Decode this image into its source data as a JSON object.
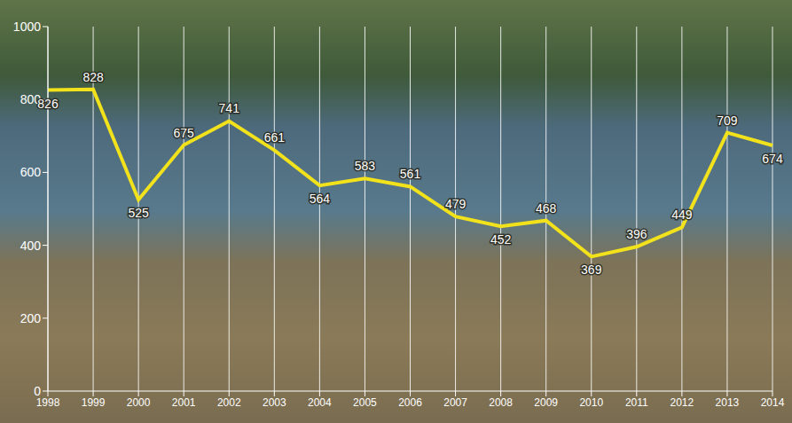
{
  "chart_data": {
    "type": "line",
    "categories": [
      "1998",
      "1999",
      "2000",
      "2001",
      "2002",
      "2003",
      "2004",
      "2005",
      "2006",
      "2007",
      "2008",
      "2009",
      "2010",
      "2011",
      "2012",
      "2013",
      "2014"
    ],
    "values": [
      826,
      828,
      525,
      675,
      741,
      661,
      564,
      583,
      561,
      479,
      452,
      468,
      369,
      396,
      449,
      709,
      674
    ],
    "color": "#f2e21c",
    "ylim": [
      0,
      1000
    ],
    "yticks": [
      0,
      200,
      400,
      600,
      800,
      1000
    ],
    "grid": true,
    "data_labels": true,
    "marker": "none"
  }
}
